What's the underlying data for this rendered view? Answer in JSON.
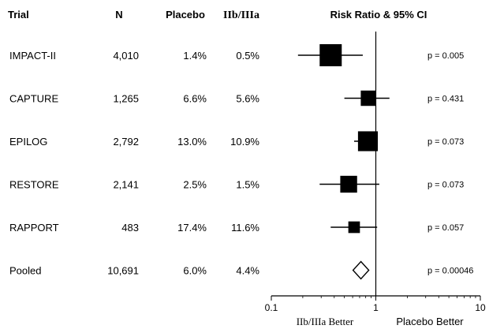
{
  "headers": {
    "trial": "Trial",
    "n": "N",
    "placebo": "Placebo",
    "treatment": "IIb/IIIa",
    "plot": "Risk Ratio & 95% CI"
  },
  "chart_data": {
    "type": "forest",
    "x_scale": "log",
    "xlim": [
      0.1,
      10
    ],
    "x_ticks": [
      0.1,
      1,
      10
    ],
    "x_tick_labels": [
      "0.1",
      "1",
      "10"
    ],
    "reference_line": 1,
    "left_label": "IIb/IIIa Better",
    "right_label": "Placebo Better",
    "rows": [
      {
        "trial": "IMPACT-II",
        "n": "4,010",
        "placebo": "1.4%",
        "treatment": "0.5%",
        "rr": 0.37,
        "ci_low": 0.18,
        "ci_high": 0.75,
        "weight": 1.0,
        "p": "p = 0.005"
      },
      {
        "trial": "CAPTURE",
        "n": "1,265",
        "placebo": "6.6%",
        "treatment": "5.6%",
        "rr": 0.85,
        "ci_low": 0.5,
        "ci_high": 1.35,
        "weight": 0.55,
        "p": "p = 0.431"
      },
      {
        "trial": "EPILOG",
        "n": "2,792",
        "placebo": "13.0%",
        "treatment": "10.9%",
        "rr": 0.84,
        "ci_low": 0.62,
        "ci_high": 1.0,
        "weight": 0.85,
        "p": "p = 0.073"
      },
      {
        "trial": "RESTORE",
        "n": "2,141",
        "placebo": "2.5%",
        "treatment": "1.5%",
        "rr": 0.55,
        "ci_low": 0.29,
        "ci_high": 1.08,
        "weight": 0.65,
        "p": "p = 0.073"
      },
      {
        "trial": "RAPPORT",
        "n": "483",
        "placebo": "17.4%",
        "treatment": "11.6%",
        "rr": 0.62,
        "ci_low": 0.37,
        "ci_high": 1.03,
        "weight": 0.3,
        "p": "p = 0.057"
      }
    ],
    "pooled": {
      "trial": "Pooled",
      "n": "10,691",
      "placebo": "6.0%",
      "treatment": "4.4%",
      "rr": 0.72,
      "p": "p = 0.00046"
    }
  }
}
